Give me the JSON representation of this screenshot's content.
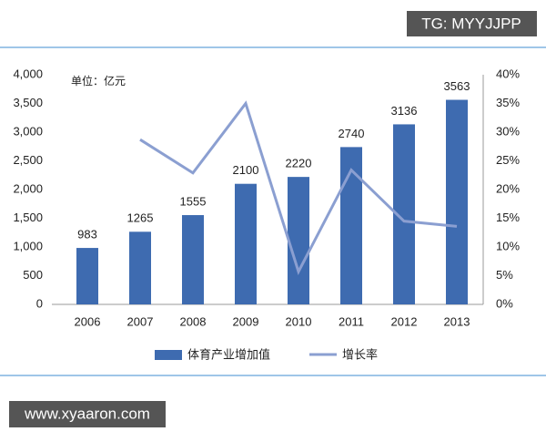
{
  "chart_data": {
    "type": "bar-line",
    "unit_label": "单位：亿元",
    "categories": [
      "2006",
      "2007",
      "2008",
      "2009",
      "2010",
      "2011",
      "2012",
      "2013"
    ],
    "series": [
      {
        "name": "体育产业增加值",
        "type": "bar",
        "color": "#3e6bb0",
        "values": [
          983,
          1265,
          1555,
          2100,
          2220,
          2740,
          3136,
          3563
        ]
      },
      {
        "name": "增长率",
        "type": "line",
        "axis": "y2",
        "color": "#8b9fd1",
        "values": [
          null,
          28.7,
          22.9,
          35.0,
          5.7,
          23.4,
          14.5,
          13.6
        ]
      }
    ],
    "ylim": [
      0,
      4000
    ],
    "yticks": [
      0,
      500,
      {
        "value": 1000,
        "label": "1,000"
      },
      {
        "value": 1500,
        "label": "1,500"
      },
      {
        "value": 2000,
        "label": "2,000"
      },
      {
        "value": 2500,
        "label": "2,500"
      },
      {
        "value": 3000,
        "label": "3,000"
      },
      {
        "value": 3500,
        "label": "3,500"
      },
      {
        "value": 4000,
        "label": "4,000"
      }
    ],
    "y2lim": [
      0,
      40
    ],
    "y2ticks": [
      {
        "value": 0,
        "label": "0%"
      },
      {
        "value": 5,
        "label": "5%"
      },
      {
        "value": 10,
        "label": "10%"
      },
      {
        "value": 15,
        "label": "15%"
      },
      {
        "value": 20,
        "label": "20%"
      },
      {
        "value": 25,
        "label": "25%"
      },
      {
        "value": 30,
        "label": "30%"
      },
      {
        "value": 35,
        "label": "35%"
      },
      {
        "value": 40,
        "label": "40%"
      }
    ],
    "grid": false
  },
  "watermarks": {
    "top": "TG: MYYJJPP",
    "bottom": "www.xyaaron.com"
  }
}
